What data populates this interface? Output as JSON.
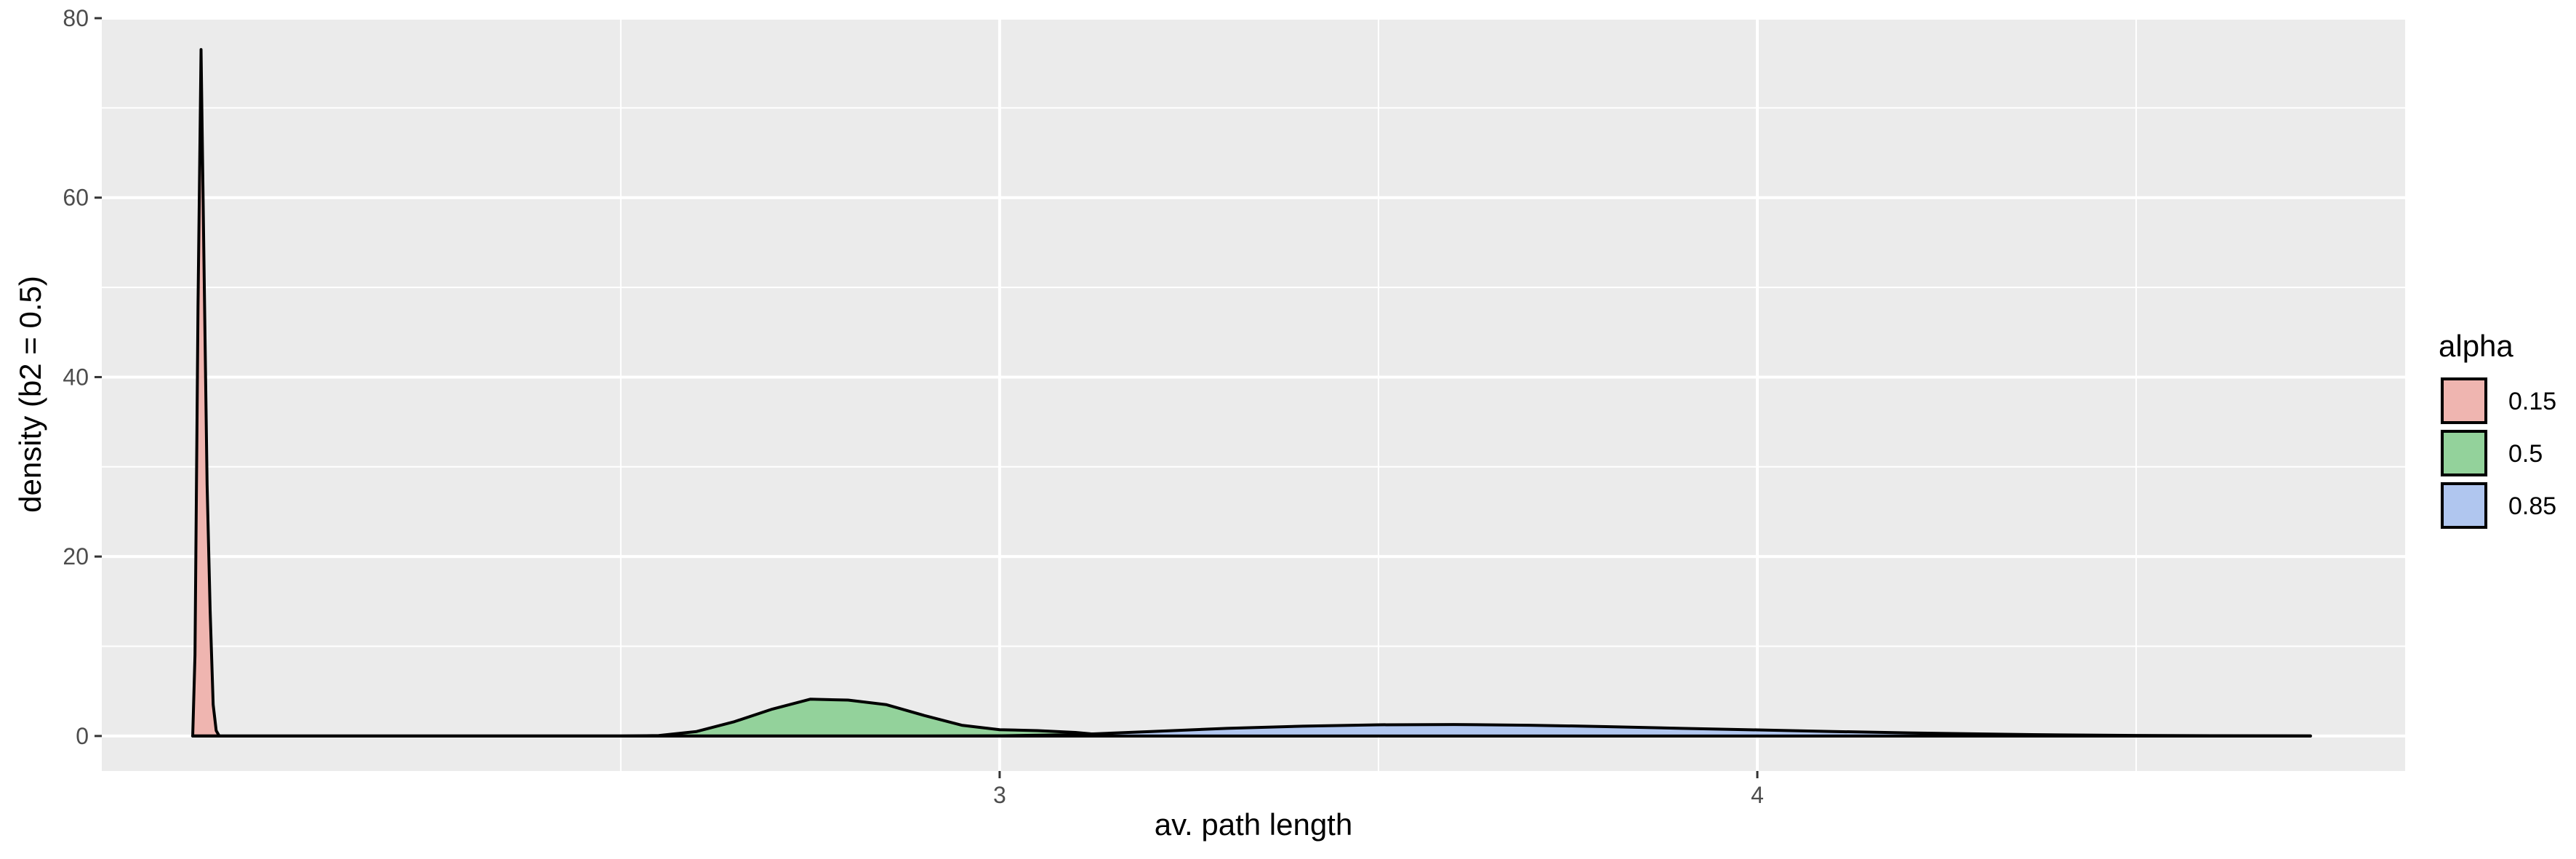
{
  "chart_data": {
    "type": "area",
    "subtype": "density",
    "xlabel": "av. path length",
    "ylabel": "density (b2 = 0.5)",
    "xlim": [
      1.815,
      4.855
    ],
    "ylim": [
      -3.9,
      80
    ],
    "x_ticks": [
      3,
      4
    ],
    "x_tick_labels": [
      "3",
      "4"
    ],
    "x_minor_ticks": [
      2.5,
      3.5,
      4.5
    ],
    "y_ticks": [
      0,
      20,
      40,
      60,
      80
    ],
    "y_tick_labels": [
      "0",
      "20",
      "40",
      "60",
      "80"
    ],
    "grid": true,
    "legend": {
      "title": "alpha",
      "position": "right"
    },
    "series": [
      {
        "name": "0.15",
        "color": "#F8766D",
        "fill": "#EFB5B0",
        "x": [
          1.935,
          1.938,
          1.942,
          1.946,
          1.95,
          1.954,
          1.958,
          1.962,
          1.966,
          1.97,
          2.0,
          2.5,
          3.0,
          4.0,
          4.73
        ],
        "y": [
          0,
          9,
          48,
          76.5,
          52,
          28,
          14,
          3.5,
          0.6,
          0,
          0,
          0,
          0,
          0,
          0
        ]
      },
      {
        "name": "0.5",
        "color": "#00BA38",
        "fill": "#93D29B",
        "x": [
          1.935,
          2.5,
          2.55,
          2.6,
          2.65,
          2.7,
          2.75,
          2.8,
          2.85,
          2.9,
          2.95,
          3.0,
          3.05,
          3.1,
          3.12,
          3.15,
          3.2,
          3.3,
          3.5,
          4.0,
          4.73
        ],
        "y": [
          0,
          0,
          0.05,
          0.5,
          1.6,
          3.0,
          4.1,
          4.0,
          3.5,
          2.3,
          1.2,
          0.7,
          0.6,
          0.4,
          0.25,
          0.1,
          0.02,
          0,
          0,
          0,
          0
        ]
      },
      {
        "name": "0.85",
        "color": "#619CFF",
        "fill": "#B0C6EF",
        "x": [
          1.935,
          2.9,
          3.0,
          3.1,
          3.2,
          3.3,
          3.4,
          3.5,
          3.6,
          3.7,
          3.8,
          3.9,
          4.0,
          4.1,
          4.2,
          4.3,
          4.4,
          4.5,
          4.6,
          4.73
        ],
        "y": [
          0,
          0,
          0.02,
          0.15,
          0.5,
          0.85,
          1.1,
          1.25,
          1.28,
          1.2,
          1.05,
          0.85,
          0.68,
          0.5,
          0.35,
          0.22,
          0.12,
          0.06,
          0.03,
          0.01
        ]
      }
    ]
  }
}
